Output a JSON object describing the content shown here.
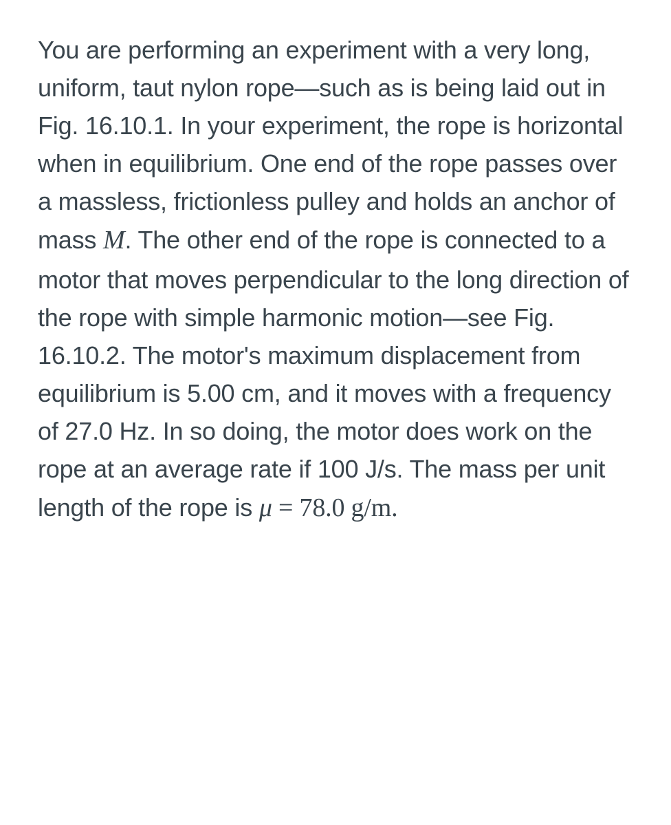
{
  "text": {
    "part1": "You are performing an experiment with a very long, uniform, taut nylon rope—such as is being laid out in Fig. 16.10.1. In your experiment, the rope is horizontal when in equilibrium. One end of the rope passes over a massless, frictionless pulley and holds an anchor of mass ",
    "mass_var": "M",
    "part2": ". The other end of the rope is connected to a motor that moves perpendicular to the long direction of the rope with simple harmonic motion—see Fig. 16.10.2. The motor's maximum displacement from equilibrium is 5.00 cm, and it moves with a frequency of 27.0 Hz. In so doing, the motor does work on the rope at an average rate if 100 J/s. The mass per unit length of the rope is ",
    "mu_var": "μ",
    "equals": " = ",
    "mu_value": "78.0",
    "mu_unit": " g/m",
    "period": "."
  },
  "styles": {
    "text_color": "#3a454d",
    "background_color": "#ffffff",
    "font_size_body": 36,
    "font_size_math": 38,
    "line_height": 1.53
  }
}
